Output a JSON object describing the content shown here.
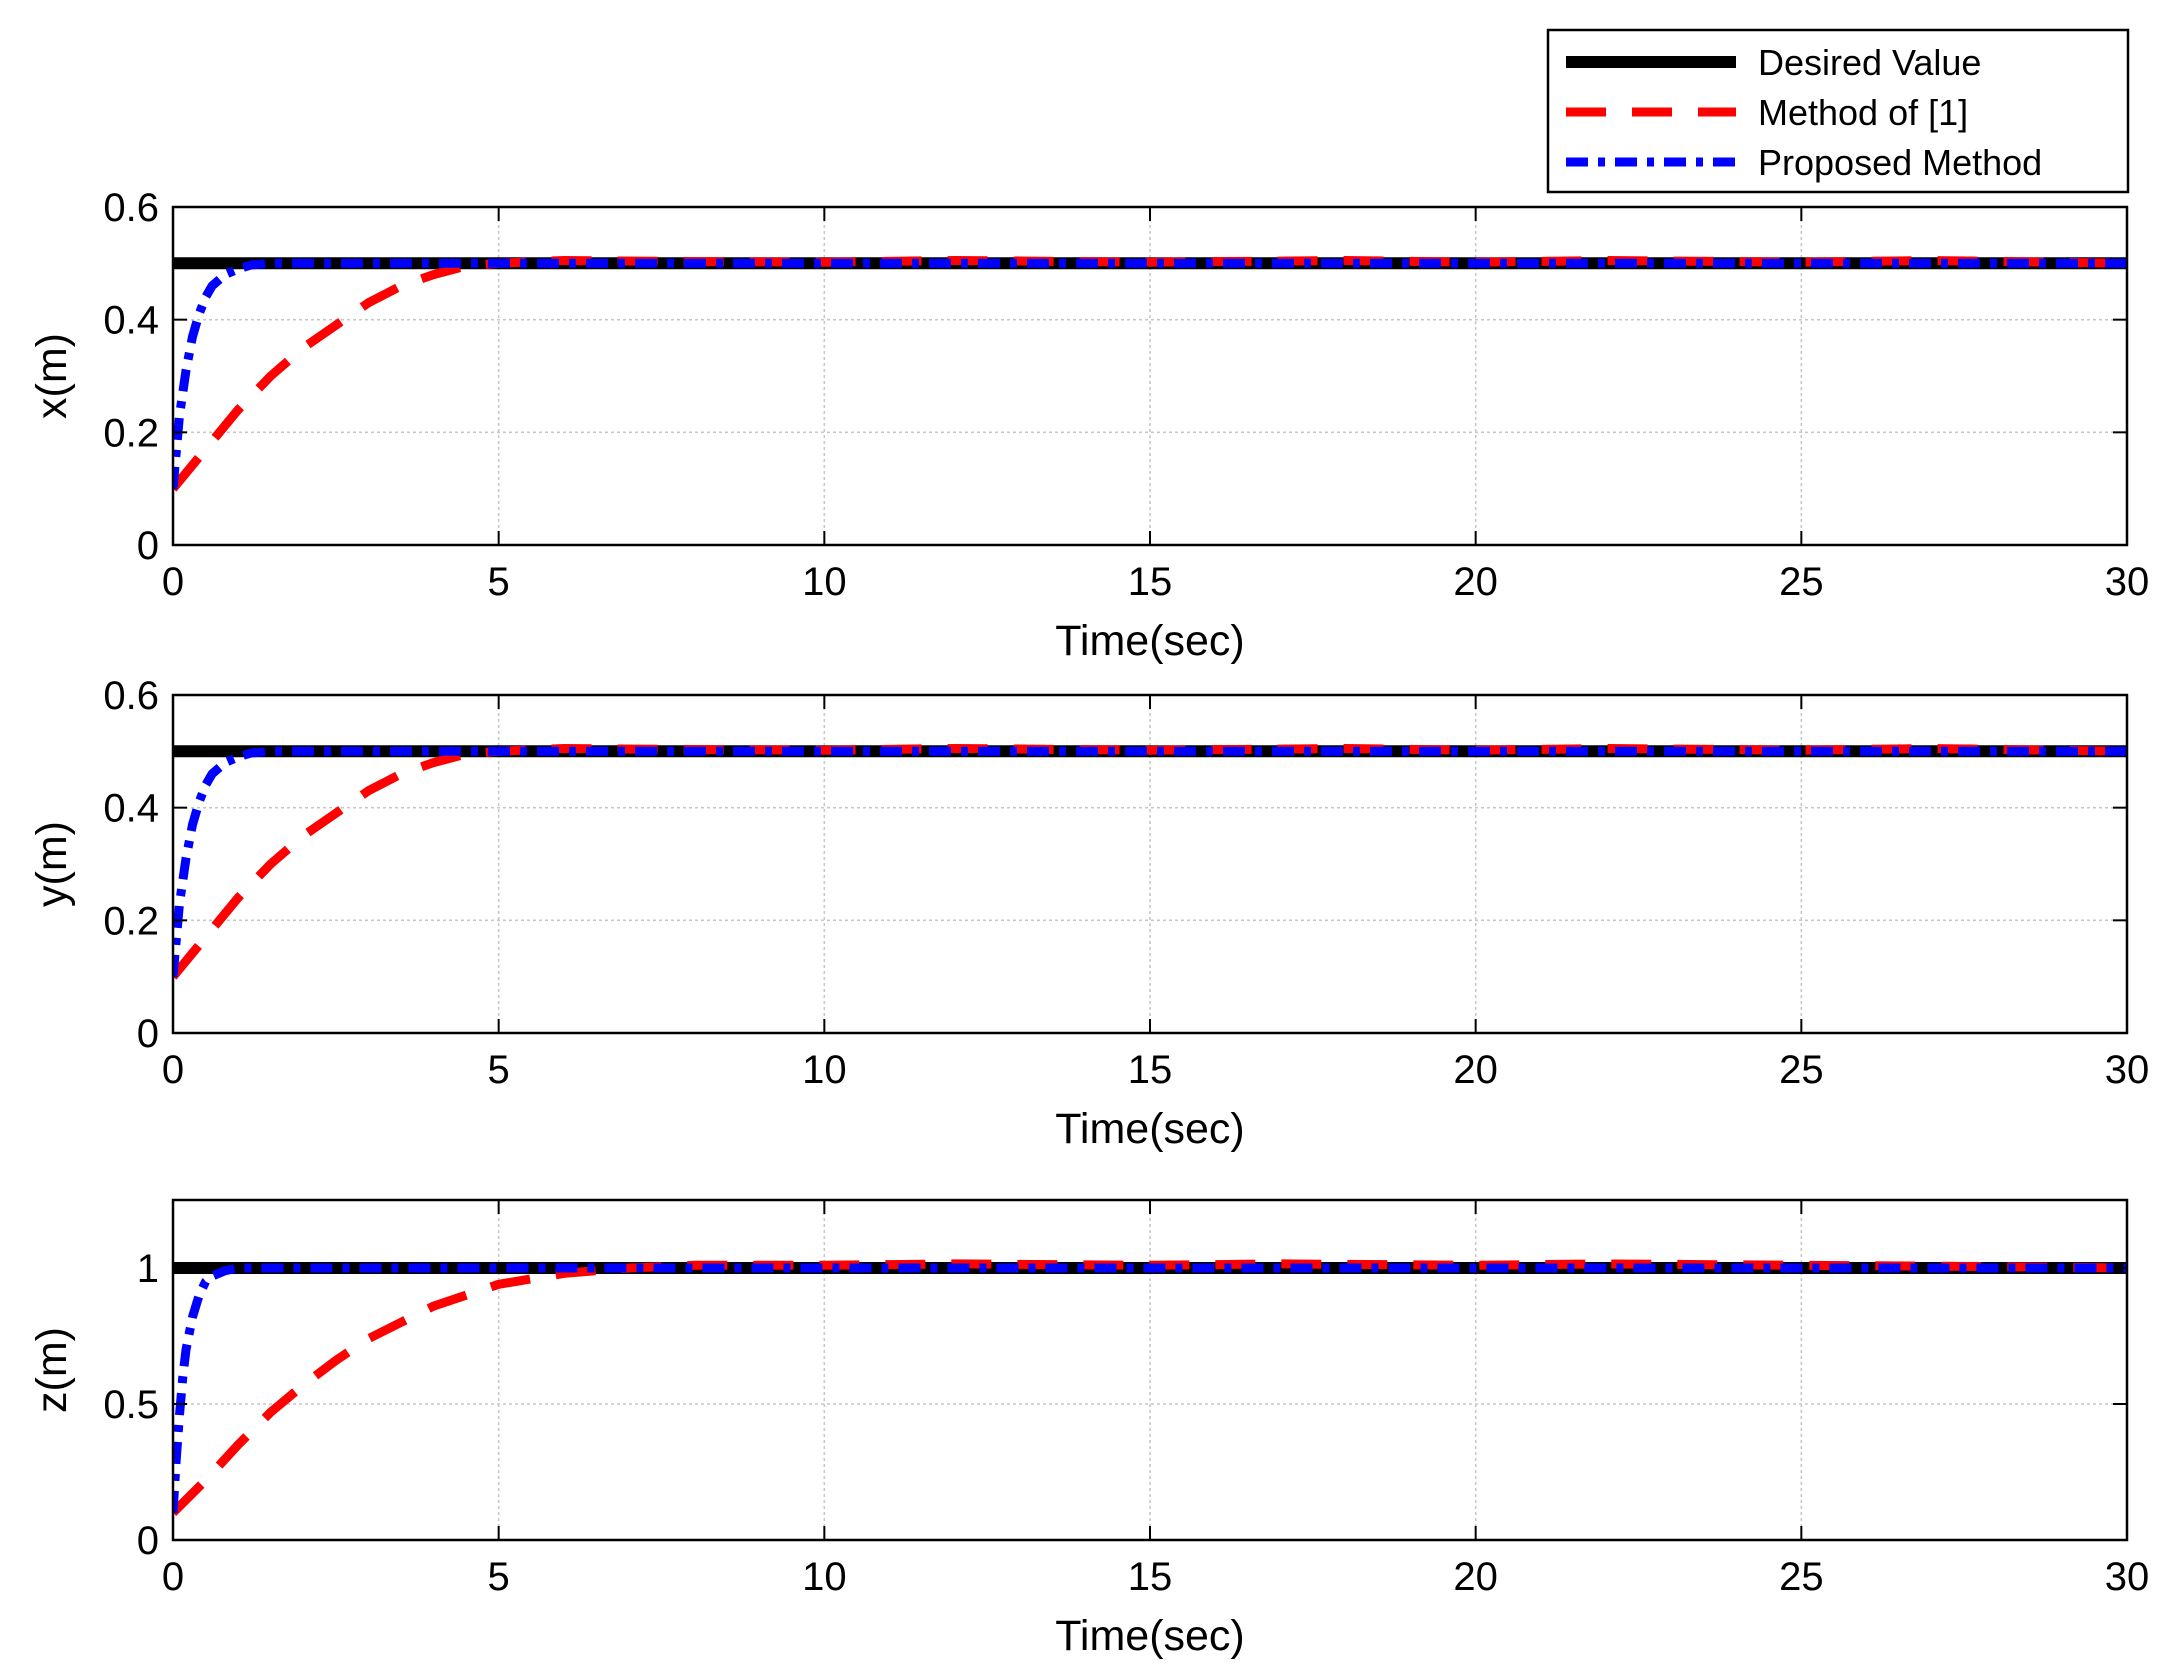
{
  "chart_data": [
    {
      "type": "line",
      "xlabel": "Time(sec)",
      "ylabel": "x(m)",
      "xlim": [
        0,
        30
      ],
      "ylim": [
        0,
        0.6
      ],
      "xticks": [
        "0",
        "5",
        "10",
        "15",
        "20",
        "25",
        "30"
      ],
      "yticks": [
        "0",
        "0.2",
        "0.4",
        "0.6"
      ],
      "grid": true,
      "series": [
        {
          "name": "Desired Value",
          "color": "#000000",
          "style": "solid",
          "x": [
            0,
            30
          ],
          "y": [
            0.5,
            0.5
          ]
        },
        {
          "name": "Method of [1]",
          "color": "#ff0000",
          "style": "dashed",
          "x": [
            0,
            0.5,
            1,
            1.5,
            2,
            2.5,
            3,
            3.5,
            4,
            4.5,
            5,
            6,
            8,
            10,
            12,
            15,
            18,
            20,
            22,
            25,
            27,
            30
          ],
          "y": [
            0.1,
            0.17,
            0.24,
            0.3,
            0.35,
            0.39,
            0.43,
            0.46,
            0.48,
            0.495,
            0.5,
            0.505,
            0.503,
            0.502,
            0.505,
            0.502,
            0.505,
            0.502,
            0.505,
            0.502,
            0.505,
            0.5
          ]
        },
        {
          "name": "Proposed Method",
          "color": "#0000ff",
          "style": "dashdot",
          "x": [
            0,
            0.1,
            0.2,
            0.3,
            0.4,
            0.5,
            0.6,
            0.8,
            1,
            1.2,
            1.5,
            2,
            5,
            10,
            15,
            20,
            25,
            30
          ],
          "y": [
            0.1,
            0.23,
            0.31,
            0.37,
            0.41,
            0.44,
            0.46,
            0.48,
            0.49,
            0.497,
            0.5,
            0.5,
            0.5,
            0.5,
            0.5,
            0.5,
            0.5,
            0.5
          ]
        }
      ]
    },
    {
      "type": "line",
      "xlabel": "Time(sec)",
      "ylabel": "y(m)",
      "xlim": [
        0,
        30
      ],
      "ylim": [
        0,
        0.6
      ],
      "xticks": [
        "0",
        "5",
        "10",
        "15",
        "20",
        "25",
        "30"
      ],
      "yticks": [
        "0",
        "0.2",
        "0.4",
        "0.6"
      ],
      "grid": true,
      "series": [
        {
          "name": "Desired Value",
          "color": "#000000",
          "style": "solid",
          "x": [
            0,
            30
          ],
          "y": [
            0.5,
            0.5
          ]
        },
        {
          "name": "Method of [1]",
          "color": "#ff0000",
          "style": "dashed",
          "x": [
            0,
            0.5,
            1,
            1.5,
            2,
            2.5,
            3,
            3.5,
            4,
            4.5,
            5,
            6,
            8,
            10,
            12,
            15,
            18,
            20,
            22,
            25,
            27,
            30
          ],
          "y": [
            0.1,
            0.17,
            0.24,
            0.3,
            0.35,
            0.39,
            0.43,
            0.46,
            0.48,
            0.495,
            0.5,
            0.505,
            0.503,
            0.502,
            0.505,
            0.502,
            0.505,
            0.502,
            0.505,
            0.502,
            0.505,
            0.5
          ]
        },
        {
          "name": "Proposed Method",
          "color": "#0000ff",
          "style": "dashdot",
          "x": [
            0,
            0.1,
            0.2,
            0.3,
            0.4,
            0.5,
            0.6,
            0.8,
            1,
            1.2,
            1.5,
            2,
            5,
            10,
            15,
            20,
            25,
            30
          ],
          "y": [
            0.1,
            0.23,
            0.31,
            0.37,
            0.41,
            0.44,
            0.46,
            0.48,
            0.49,
            0.497,
            0.5,
            0.5,
            0.5,
            0.5,
            0.5,
            0.5,
            0.5,
            0.5
          ]
        }
      ]
    },
    {
      "type": "line",
      "xlabel": "Time(sec)",
      "ylabel": "z(m)",
      "xlim": [
        0,
        30
      ],
      "ylim": [
        0,
        1.25
      ],
      "xticks": [
        "0",
        "5",
        "10",
        "15",
        "20",
        "25",
        "30"
      ],
      "yticks": [
        "0",
        "0.5",
        "1"
      ],
      "grid": true,
      "series": [
        {
          "name": "Desired Value",
          "color": "#000000",
          "style": "solid",
          "x": [
            0,
            30
          ],
          "y": [
            1.0,
            1.0
          ]
        },
        {
          "name": "Method of [1]",
          "color": "#ff0000",
          "style": "dashed",
          "x": [
            0,
            0.5,
            1,
            1.5,
            2,
            2.5,
            3,
            3.5,
            4,
            4.5,
            5,
            5.5,
            6,
            7,
            8,
            10,
            12,
            15,
            17,
            20,
            22,
            25,
            28,
            30
          ],
          "y": [
            0.1,
            0.22,
            0.35,
            0.47,
            0.57,
            0.66,
            0.74,
            0.8,
            0.86,
            0.9,
            0.94,
            0.96,
            0.98,
            1.0,
            1.01,
            1.01,
            1.015,
            1.01,
            1.015,
            1.01,
            1.015,
            1.01,
            1.005,
            1.0
          ]
        },
        {
          "name": "Proposed Method",
          "color": "#0000ff",
          "style": "dashdot",
          "x": [
            0,
            0.05,
            0.1,
            0.15,
            0.2,
            0.3,
            0.4,
            0.5,
            0.6,
            0.8,
            1,
            1.5,
            5,
            10,
            15,
            20,
            25,
            30
          ],
          "y": [
            0.1,
            0.3,
            0.46,
            0.6,
            0.7,
            0.82,
            0.9,
            0.95,
            0.97,
            0.99,
            1.0,
            1.0,
            1.0,
            1.0,
            1.0,
            1.0,
            1.0,
            1.0
          ]
        }
      ]
    }
  ],
  "legend": {
    "placement": "top-right",
    "entries": [
      "Desired Value",
      "Method of [1]",
      "Proposed Method"
    ]
  }
}
